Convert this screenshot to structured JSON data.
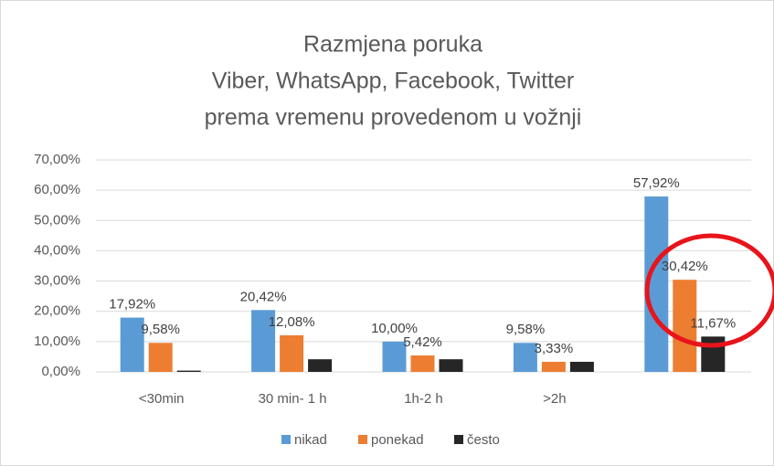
{
  "chart_data": {
    "type": "bar",
    "title": [
      "Razmjena poruka",
      "Viber, WhatsApp, Facebook, Twitter",
      "prema vremenu provedenom u vožnji"
    ],
    "categories": [
      "<30min",
      "30 min- 1 h",
      "1h-2 h",
      ">2h",
      null
    ],
    "series": [
      {
        "name": "nikad",
        "color": "#5b9bd5",
        "values": [
          17.92,
          20.42,
          10.0,
          9.58,
          57.92
        ],
        "value_labels": [
          "17,92%",
          "20,42%",
          "10,00%",
          "9,58%",
          "57,92%"
        ]
      },
      {
        "name": "ponekad",
        "color": "#ed7d31",
        "values": [
          9.58,
          12.08,
          5.42,
          3.33,
          30.42
        ],
        "value_labels": [
          "9,58%",
          "12,08%",
          "5,42%",
          "3,33%",
          "30,42%"
        ]
      },
      {
        "name": "često",
        "color": "#262626",
        "values": [
          0.42,
          4.17,
          4.17,
          3.33,
          11.67
        ],
        "value_labels": [
          null,
          null,
          null,
          null,
          "11,67%"
        ]
      }
    ],
    "ylim": [
      0,
      70
    ],
    "yticks": [
      {
        "value": 0,
        "label": "0,00%"
      },
      {
        "value": 10,
        "label": "10,00%"
      },
      {
        "value": 20,
        "label": "20,00%"
      },
      {
        "value": 30,
        "label": "30,00%"
      },
      {
        "value": 40,
        "label": "40,00%"
      },
      {
        "value": 50,
        "label": "50,00%"
      },
      {
        "value": 60,
        "label": "60,00%"
      },
      {
        "value": 70,
        "label": "70,00%"
      }
    ],
    "grid": true,
    "legend": "bottom"
  }
}
